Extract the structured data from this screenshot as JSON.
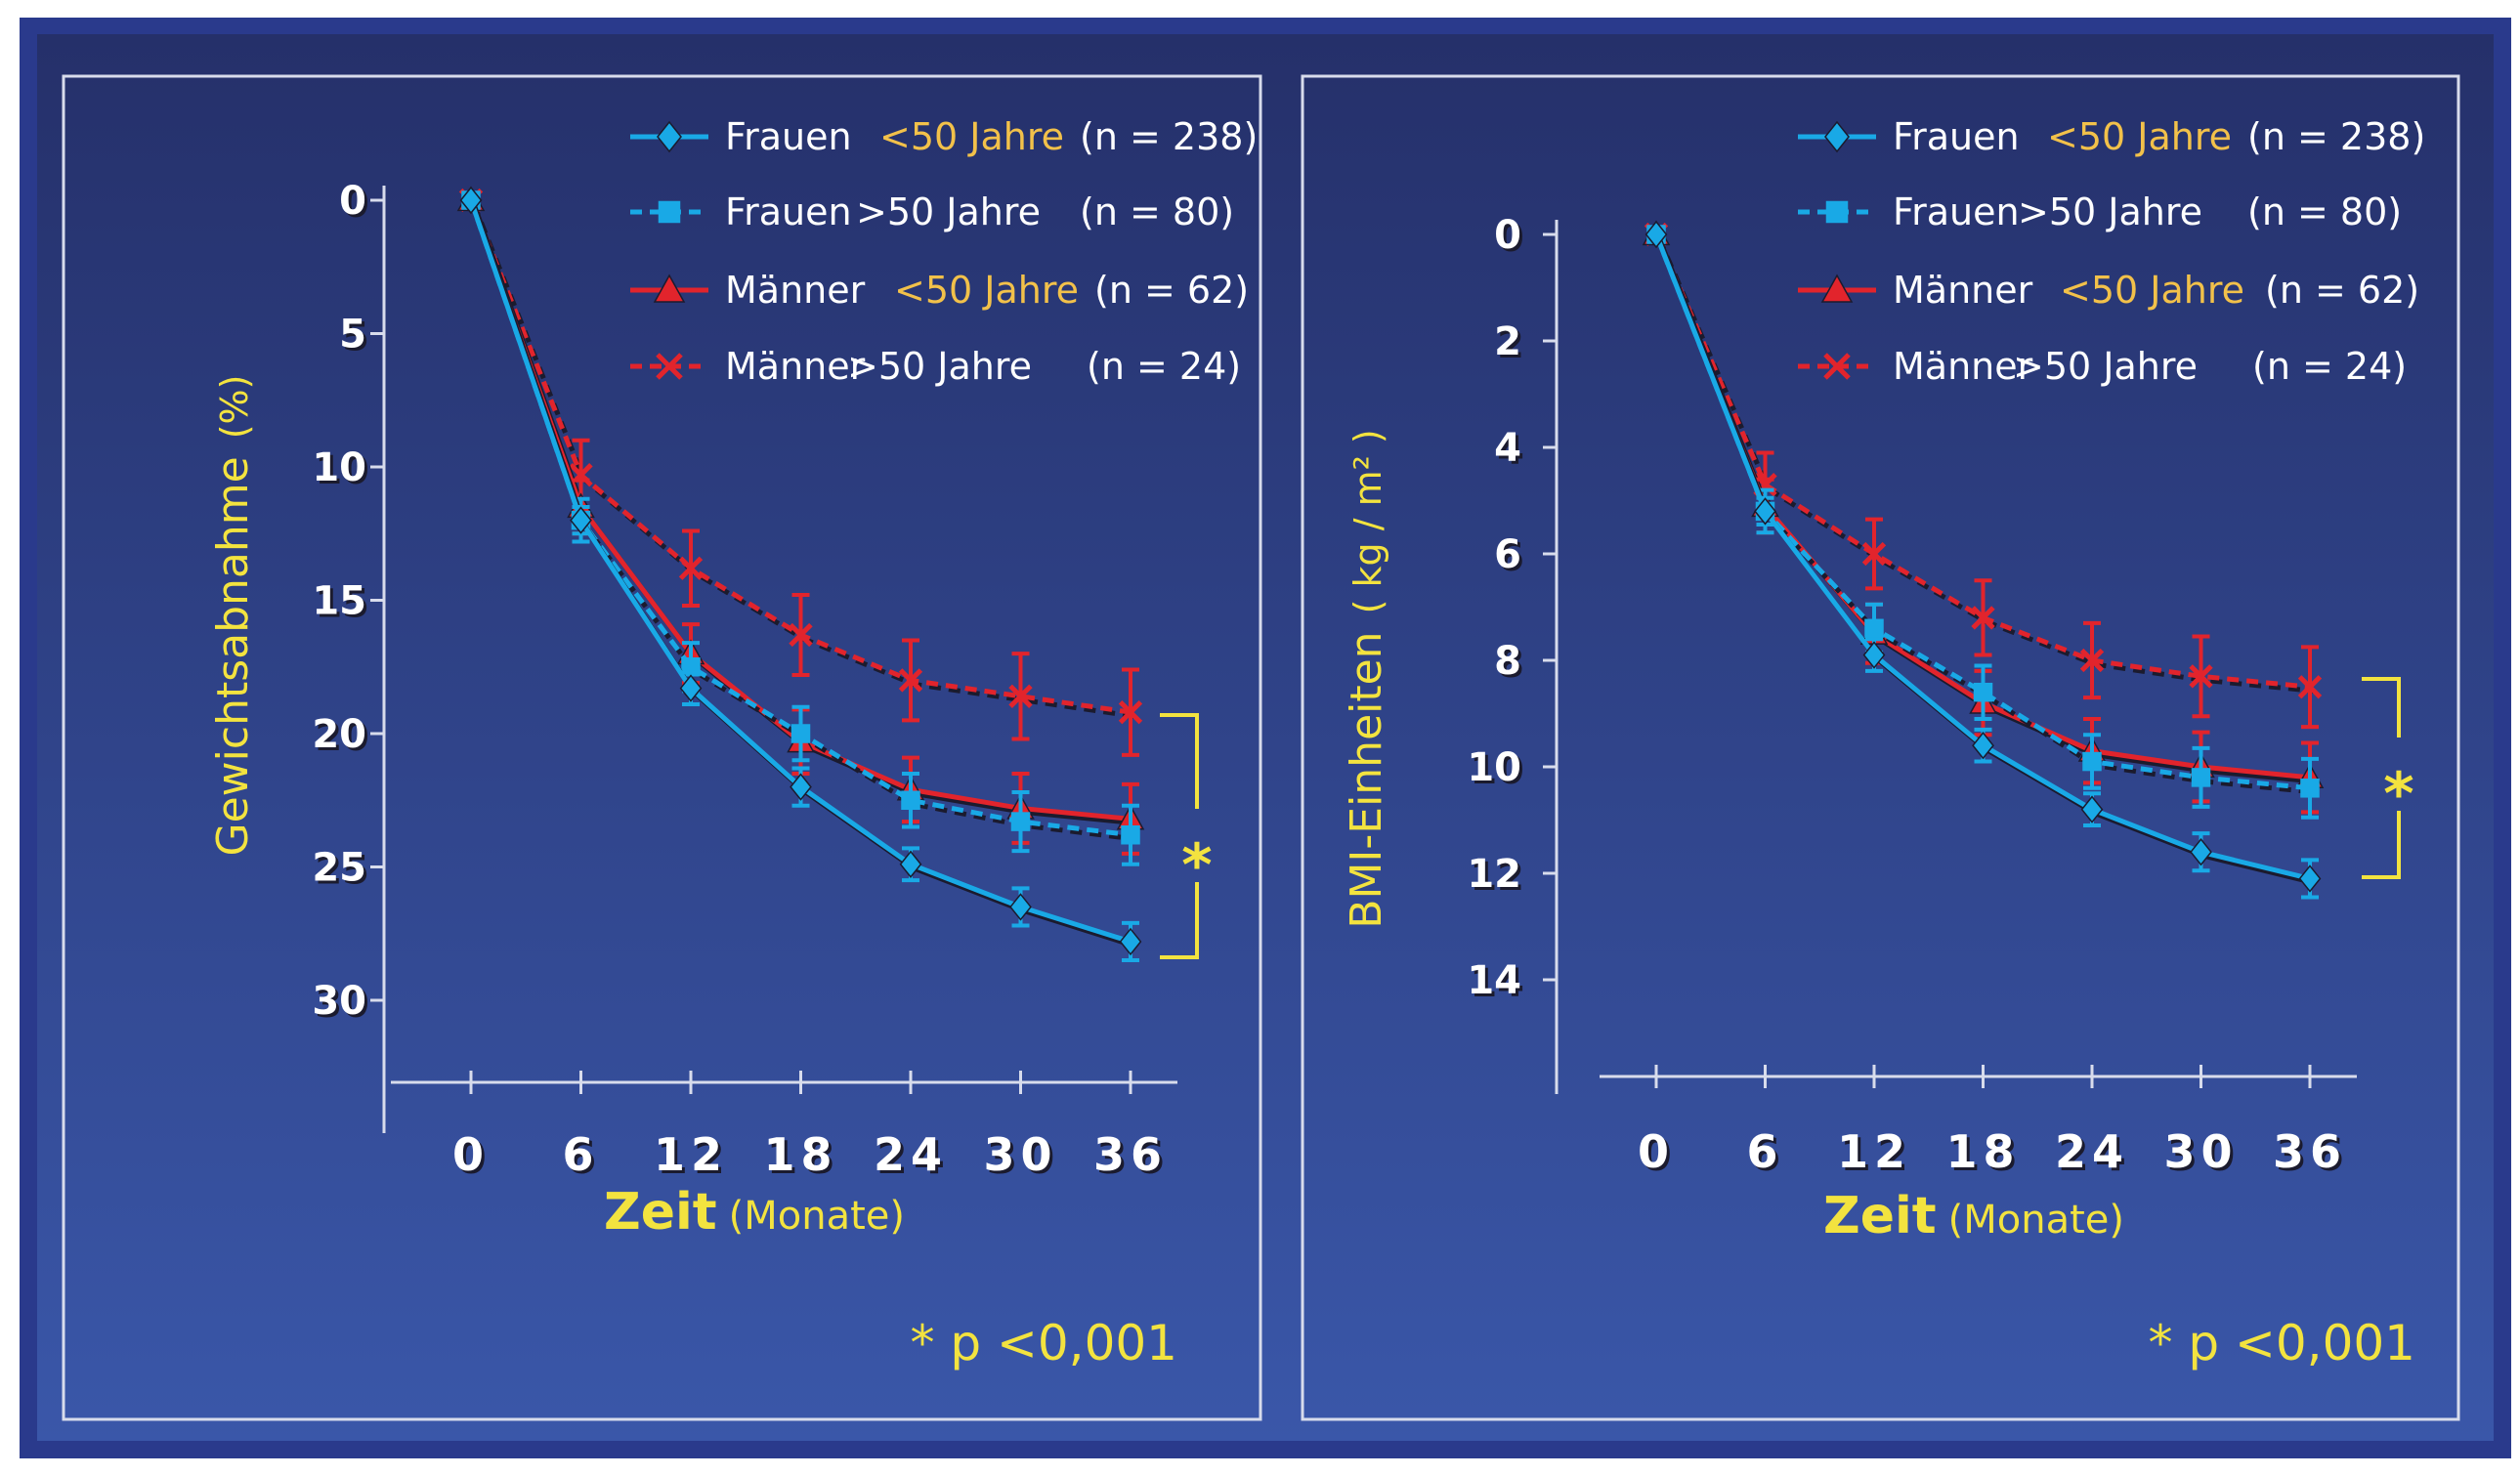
{
  "colors": {
    "frame": "#2a3a8c",
    "bg_top": "#25306a",
    "bg_bottom": "#3a57a9",
    "axis": "#d8dcec",
    "yellow": "#f3e33f",
    "orange": "#f2c14a",
    "cyan": "#19a9e6",
    "red": "#e2242c",
    "label_text": "#ffffff"
  },
  "chart_data": [
    {
      "type": "line",
      "ylabel": "Gewichtsabnahme",
      "ylabel_unit": "(%)",
      "xlabel": "Zeit",
      "xlabel_unit": "(Monate)",
      "x": [
        0,
        6,
        12,
        18,
        24,
        30,
        36
      ],
      "x_ticks": [
        "0",
        "6",
        "12",
        "18",
        "24",
        "30",
        "36"
      ],
      "y_ticks": [
        "0",
        "5",
        "10",
        "15",
        "20",
        "25",
        "30"
      ],
      "ylim": [
        0,
        33
      ],
      "y_inverted": true,
      "grid": false,
      "legend_position": "top-right",
      "series": [
        {
          "name": "Frauen",
          "age": "<50 Jahre",
          "n": "(n = 238)",
          "marker": "diamond",
          "dash": false,
          "values": [
            0,
            12,
            18.3,
            22,
            24.9,
            26.5,
            27.8
          ],
          "error": [
            0,
            0.5,
            0.6,
            0.7,
            0.6,
            0.7,
            0.7
          ]
        },
        {
          "name": "Frauen",
          "age": ">50 Jahre",
          "n": "(n = 80)",
          "marker": "square",
          "dash": true,
          "values": [
            0,
            12,
            17.5,
            20,
            22.5,
            23.3,
            23.8
          ],
          "error": [
            0,
            0.8,
            0.9,
            1.0,
            1.0,
            1.1,
            1.1
          ]
        },
        {
          "name": "Männer",
          "age": "<50 Jahre",
          "n": "(n = 62)",
          "marker": "triangle",
          "dash": false,
          "values": [
            0,
            11.5,
            17,
            20.3,
            22.1,
            22.8,
            23.2
          ],
          "error": [
            0,
            1.0,
            1.1,
            1.2,
            1.2,
            1.3,
            1.3
          ]
        },
        {
          "name": "Männer",
          "age": ">50 Jahre",
          "n": "(n = 24)",
          "marker": "x",
          "dash": true,
          "values": [
            0,
            10.3,
            13.8,
            16.3,
            18,
            18.6,
            19.2
          ],
          "error": [
            0,
            1.3,
            1.4,
            1.5,
            1.5,
            1.6,
            1.6
          ]
        }
      ],
      "significance_marker": "*",
      "footnote": "* p <0,001"
    },
    {
      "type": "line",
      "ylabel": "BMI-Einheiten",
      "ylabel_unit": "( kg / m² )",
      "xlabel": "Zeit",
      "xlabel_unit": "(Monate)",
      "x": [
        0,
        6,
        12,
        18,
        24,
        30,
        36
      ],
      "x_ticks": [
        "0",
        "6",
        "12",
        "18",
        "24",
        "30",
        "36"
      ],
      "y_ticks": [
        "0",
        "2",
        "4",
        "6",
        "8",
        "10",
        "12",
        "14"
      ],
      "ylim": [
        0,
        16
      ],
      "y_inverted": true,
      "grid": false,
      "legend_position": "top-right",
      "series": [
        {
          "name": "Frauen",
          "age": "<50 Jahre",
          "n": "(n = 238)",
          "marker": "diamond",
          "dash": false,
          "values": [
            0,
            5.2,
            7.9,
            9.6,
            10.8,
            11.6,
            12.1
          ],
          "error": [
            0,
            0.25,
            0.3,
            0.3,
            0.3,
            0.35,
            0.35
          ]
        },
        {
          "name": "Frauen",
          "age": ">50 Jahre",
          "n": "(n = 80)",
          "marker": "square",
          "dash": true,
          "values": [
            0,
            5.2,
            7.4,
            8.6,
            9.9,
            10.2,
            10.4
          ],
          "error": [
            0,
            0.4,
            0.45,
            0.5,
            0.5,
            0.55,
            0.55
          ]
        },
        {
          "name": "Männer",
          "age": "<50 Jahre",
          "n": "(n = 62)",
          "marker": "triangle",
          "dash": false,
          "values": [
            0,
            5.1,
            7.5,
            8.8,
            9.7,
            10,
            10.2
          ],
          "error": [
            0,
            0.5,
            0.55,
            0.6,
            0.6,
            0.65,
            0.65
          ]
        },
        {
          "name": "Männer",
          "age": ">50 Jahre",
          "n": "(n = 24)",
          "marker": "x",
          "dash": true,
          "values": [
            0,
            4.7,
            6,
            7.2,
            8,
            8.3,
            8.5
          ],
          "error": [
            0,
            0.6,
            0.65,
            0.7,
            0.7,
            0.75,
            0.75
          ]
        }
      ],
      "significance_marker": "*",
      "footnote": "* p <0,001"
    }
  ]
}
